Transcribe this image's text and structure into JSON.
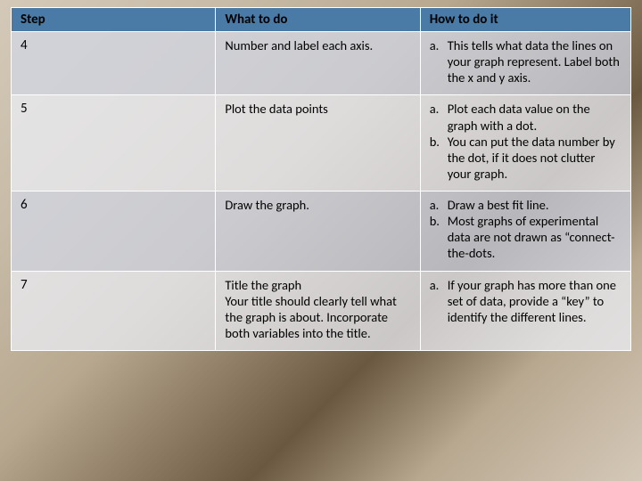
{
  "table": {
    "header_bg": "#4a7ba6",
    "band_a_bg": "rgba(210,215,228,0.75)",
    "band_b_bg": "rgba(235,238,244,0.75)",
    "columns": [
      "Step",
      "What to do",
      "How to do it"
    ],
    "rows": [
      {
        "step": "4",
        "what": "Number and label each axis.",
        "how": [
          "This tells what data the lines on your graph represent.  Label both the x and y axis."
        ]
      },
      {
        "step": "5",
        "what": "Plot the data points",
        "how": [
          "Plot each data value on the graph with a dot.",
          "You can put the data number by the dot, if it does not clutter your graph."
        ]
      },
      {
        "step": "6",
        "what": "Draw the graph.",
        "how": [
          "Draw a best fit line.",
          "Most graphs of experimental data are not drawn as “connect-the-dots."
        ]
      },
      {
        "step": "7",
        "what": "Title the graph\nYour title should clearly tell what the graph is about.  Incorporate both variables into the title.",
        "how": [
          "If your graph has more than one set of data, provide a “key” to identify the different lines."
        ]
      }
    ]
  }
}
